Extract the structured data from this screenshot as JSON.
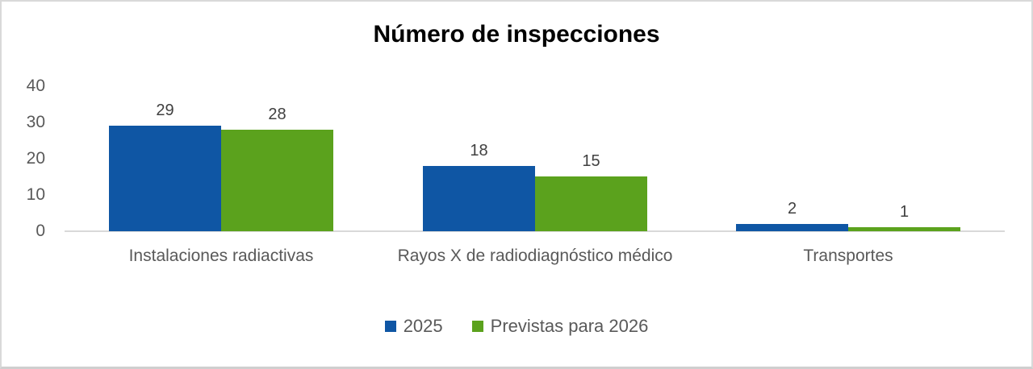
{
  "chart_data": {
    "type": "bar",
    "title": "Número de inspecciones",
    "categories": [
      "Instalaciones radiactivas",
      "Rayos X de radiodiagnóstico médico",
      "Transportes"
    ],
    "series": [
      {
        "name": "2025",
        "color": "#0f56a4",
        "values": [
          29,
          18,
          2
        ]
      },
      {
        "name": "Previstas para 2026",
        "color": "#5ba21d",
        "values": [
          28,
          15,
          1
        ]
      }
    ],
    "y_axis": {
      "ticks": [
        0,
        10,
        20,
        30,
        40
      ],
      "min": 0,
      "max": 40
    },
    "data_labels": [
      [
        "29",
        "18",
        "2"
      ],
      [
        "28",
        "15",
        "1"
      ]
    ],
    "grid": false,
    "legend_position": "bottom",
    "colors": {
      "axis_line": "#d9d9d9",
      "tick_label": "#595959",
      "category_label": "#595959",
      "data_label": "#404040",
      "legend_label": "#595959",
      "title": "#000000",
      "frame_border": "#d9d9d9"
    }
  }
}
